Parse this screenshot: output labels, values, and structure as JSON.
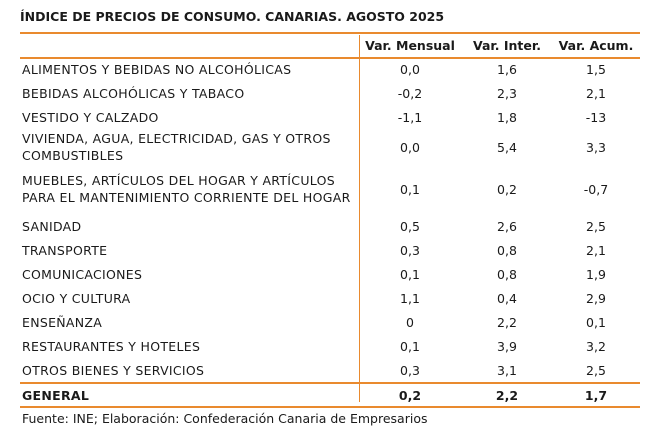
{
  "title": "ÍNDICE DE PRECIOS DE CONSUMO. CANARIAS. AGOSTO 2025",
  "columns": [
    "Var. Mensual",
    "Var. Inter.",
    "Var. Acum."
  ],
  "rows": [
    {
      "label": "ALIMENTOS Y BEBIDAS NO ALCOHÓLICAS",
      "mensual": "0,0",
      "inter": "1,6",
      "acum": "1,5"
    },
    {
      "label": "BEBIDAS ALCOHÓLICAS Y TABACO",
      "mensual": "-0,2",
      "inter": "2,3",
      "acum": "2,1"
    },
    {
      "label": "VESTIDO Y CALZADO",
      "mensual": "-1,1",
      "inter": "1,8",
      "acum": "-13"
    },
    {
      "label": "VIVIENDA, AGUA, ELECTRICIDAD, GAS Y OTROS COMBUSTIBLES",
      "label_line1": "VIVIENDA, AGUA, ELECTRICIDAD, GAS Y OTROS",
      "label_line2": "COMBUSTIBLES",
      "mensual": "0,0",
      "inter": "5,4",
      "acum": "3,3"
    },
    {
      "label": "MUEBLES, ARTÍCULOS DEL HOGAR Y ARTÍCULOS PARA EL MANTENIMIENTO CORRIENTE DEL HOGAR",
      "label_line1": "MUEBLES, ARTÍCULOS DEL HOGAR Y ARTÍCULOS",
      "label_line2": "PARA EL MANTENIMIENTO CORRIENTE DEL HOGAR",
      "mensual": "0,1",
      "inter": "0,2",
      "acum": "-0,7"
    },
    {
      "label": "SANIDAD",
      "mensual": "0,5",
      "inter": "2,6",
      "acum": "2,5"
    },
    {
      "label": "TRANSPORTE",
      "mensual": "0,3",
      "inter": "0,8",
      "acum": "2,1"
    },
    {
      "label": "COMUNICACIONES",
      "mensual": "0,1",
      "inter": "0,8",
      "acum": "1,9"
    },
    {
      "label": "OCIO Y CULTURA",
      "mensual": "1,1",
      "inter": "0,4",
      "acum": "2,9"
    },
    {
      "label": "ENSEÑANZA",
      "mensual": "0",
      "inter": "2,2",
      "acum": "0,1"
    },
    {
      "label": "RESTAURANTES Y HOTELES",
      "mensual": "0,1",
      "inter": "3,9",
      "acum": "3,2"
    },
    {
      "label": "OTROS BIENES Y SERVICIOS",
      "mensual": "0,3",
      "inter": "3,1",
      "acum": "2,5"
    }
  ],
  "total": {
    "label": "GENERAL",
    "mensual": "0,2",
    "inter": "2,2",
    "acum": "1,7"
  },
  "footer": "Fuente: INE; Elaboración: Confederación Canaria de Empresarios",
  "colors": {
    "accent": "#e98a2e",
    "text": "#1a1a1a"
  }
}
